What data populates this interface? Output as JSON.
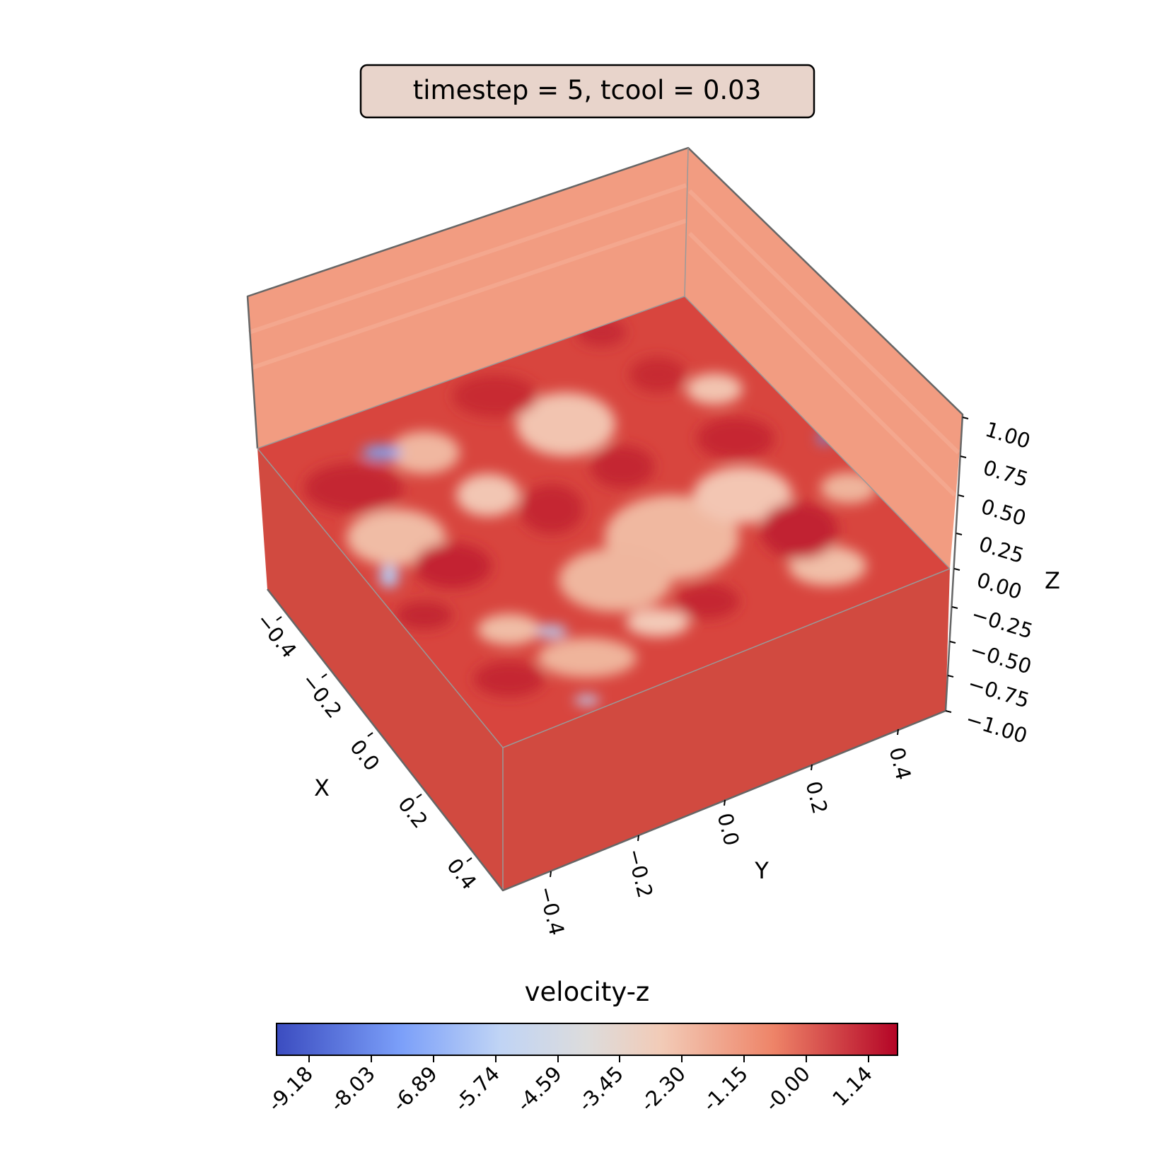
{
  "chart_data": {
    "type": "heatmap",
    "title": "timestep = 5, tcool = 0.03",
    "axes": {
      "x": {
        "label": "X",
        "ticks": [
          "−0.4",
          "−0.2",
          "0.0",
          "0.2",
          "0.4"
        ],
        "range": [
          -0.5,
          0.5
        ]
      },
      "y": {
        "label": "Y",
        "ticks": [
          "−0.4",
          "−0.2",
          "0.0",
          "0.2",
          "0.4"
        ],
        "range": [
          -0.5,
          0.5
        ]
      },
      "z": {
        "label": "Z",
        "ticks": [
          "1.00",
          "0.75",
          "0.50",
          "0.25",
          "0.00",
          "−0.25",
          "−0.50",
          "−0.75",
          "−1.00"
        ],
        "range": [
          -1.0,
          1.0
        ]
      }
    },
    "colorbar": {
      "label": "velocity-z",
      "colormap": "coolwarm",
      "vmin": -9.7,
      "vmax": 1.6,
      "ticks": [
        "-9.18",
        "-8.03",
        "-6.89",
        "-5.74",
        "-4.59",
        "-3.45",
        "-2.30",
        "-1.15",
        "-0.00",
        "1.14"
      ],
      "colors": [
        "#3b4cc0",
        "#7b9ff9",
        "#c0d4f5",
        "#dddcdc",
        "#f2cbb7",
        "#ee8468",
        "#b40426"
      ]
    },
    "face_colors": {
      "top_surface_base": "#d8453e",
      "front_wall": "#d14a40",
      "back_walls": "#f29c81"
    }
  }
}
